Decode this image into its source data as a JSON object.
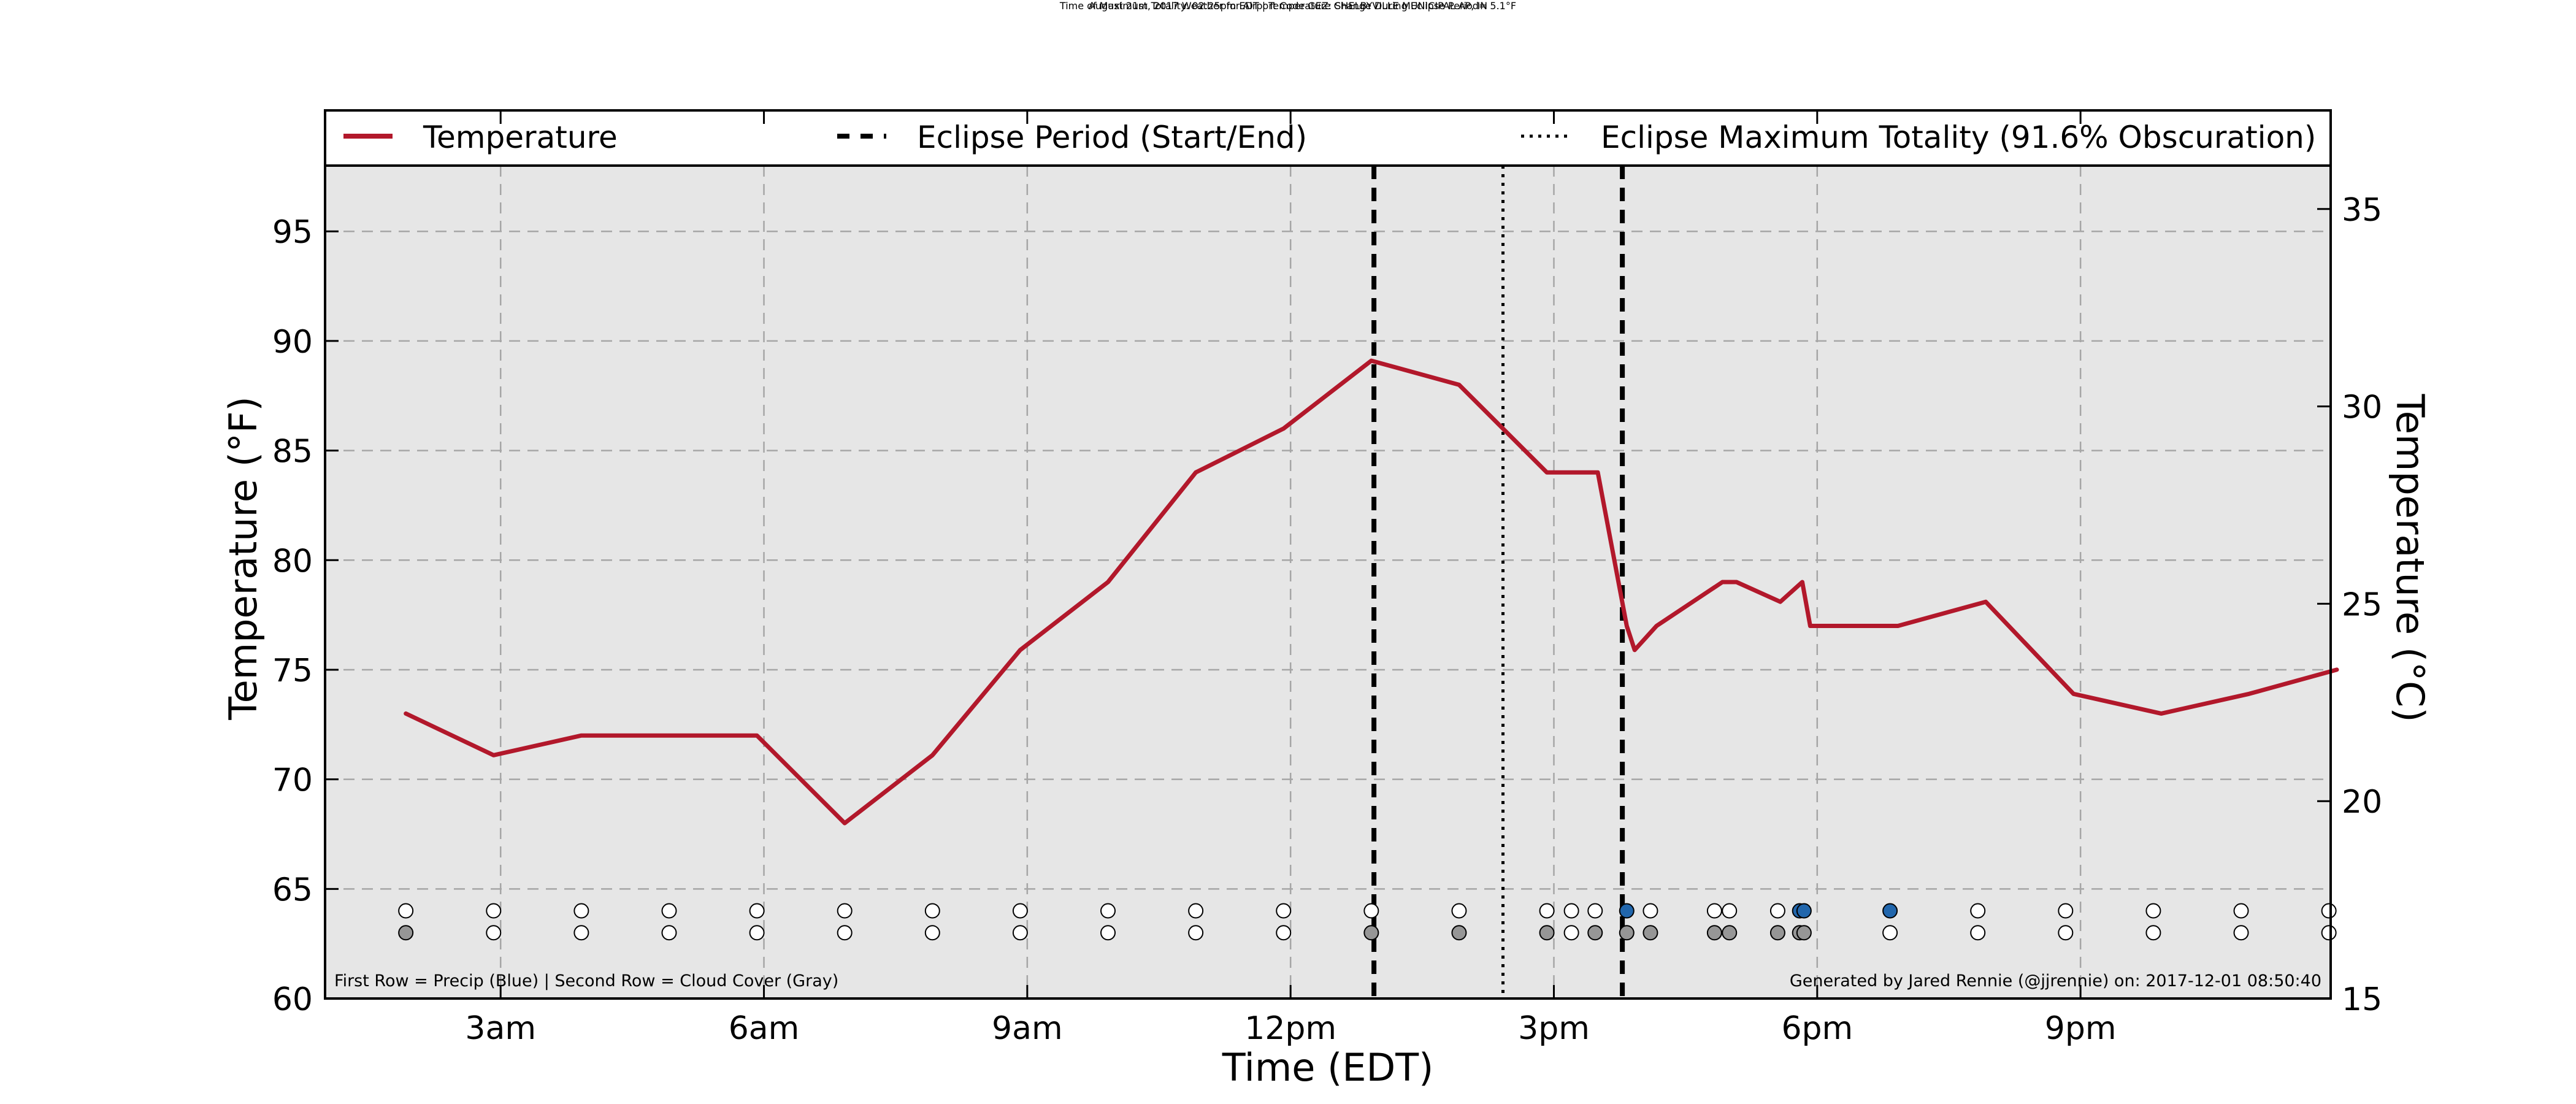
{
  "chart_data": {
    "type": "line",
    "title": "August 21st, 2017 Weather for Airport Code GEZ: SHELBYVILLE MUNICIPAL AP, IN",
    "subtitle": "Time of Maximum Totality: 02:25pm EDT | Temperature Change During Eclipse Period= 5.1°F",
    "xlabel": "Time (EDT)",
    "ylabel": "Temperature (°F)",
    "ylabel_right": "Temperature (°C)",
    "xlim": [
      1.0,
      23.85
    ],
    "ylim": [
      60,
      98
    ],
    "ylim_right": [
      15,
      36.1
    ],
    "x_ticks": [
      {
        "x": 3,
        "label": "3am"
      },
      {
        "x": 6,
        "label": "6am"
      },
      {
        "x": 9,
        "label": "9am"
      },
      {
        "x": 12,
        "label": "12pm"
      },
      {
        "x": 15,
        "label": "3pm"
      },
      {
        "x": 18,
        "label": "6pm"
      },
      {
        "x": 21,
        "label": "9pm"
      }
    ],
    "y_ticks": [
      60,
      65,
      70,
      75,
      80,
      85,
      90,
      95
    ],
    "y_ticks_right": [
      15,
      20,
      25,
      30,
      35
    ],
    "grid": true,
    "legend_position": "top",
    "legend": [
      {
        "label": "Temperature",
        "style": "solid",
        "color": "#b2182b"
      },
      {
        "label": "Eclipse Period (Start/End)",
        "style": "dashed",
        "color": "#000000"
      },
      {
        "label": "Eclipse Maximum Totality (91.6% Obscuration)",
        "style": "dotted",
        "color": "#000000"
      }
    ],
    "series": [
      {
        "name": "Temperature",
        "color": "#b2182b",
        "x": [
          1.92,
          2.92,
          3.92,
          4.92,
          5.92,
          6.92,
          7.92,
          8.92,
          9.92,
          10.92,
          11.92,
          12.92,
          13.92,
          14.92,
          15.5,
          15.83,
          15.92,
          16.17,
          16.92,
          17.08,
          17.58,
          17.83,
          17.92,
          18.92,
          19.92,
          20.92,
          21.92,
          22.92,
          23.92
        ],
        "y": [
          73,
          71.1,
          72,
          72,
          72,
          68,
          71.1,
          75.9,
          79,
          84,
          86,
          89.1,
          88,
          84,
          84,
          77,
          75.9,
          77,
          79,
          79,
          78.1,
          79,
          77,
          77,
          78.1,
          73.9,
          73,
          73.9,
          75
        ]
      }
    ],
    "vlines": [
      {
        "x": 12.95,
        "style": "dashed",
        "label": "Eclipse Period (Start/End)"
      },
      {
        "x": 14.42,
        "style": "dotted",
        "label": "Eclipse Maximum Totality (91.6% Obscuration)"
      },
      {
        "x": 15.78,
        "style": "dashed",
        "label": "Eclipse Period (Start/End)"
      }
    ],
    "observations": [
      {
        "x": 1.92,
        "precip": false,
        "cloud": true
      },
      {
        "x": 2.92,
        "precip": false,
        "cloud": false
      },
      {
        "x": 3.92,
        "precip": false,
        "cloud": false
      },
      {
        "x": 4.92,
        "precip": false,
        "cloud": false
      },
      {
        "x": 5.92,
        "precip": false,
        "cloud": false
      },
      {
        "x": 6.92,
        "precip": false,
        "cloud": false
      },
      {
        "x": 7.92,
        "precip": false,
        "cloud": false
      },
      {
        "x": 8.92,
        "precip": false,
        "cloud": false
      },
      {
        "x": 9.92,
        "precip": false,
        "cloud": false
      },
      {
        "x": 10.92,
        "precip": false,
        "cloud": false
      },
      {
        "x": 11.92,
        "precip": false,
        "cloud": false
      },
      {
        "x": 12.92,
        "precip": false,
        "cloud": true
      },
      {
        "x": 13.92,
        "precip": false,
        "cloud": true
      },
      {
        "x": 14.92,
        "precip": false,
        "cloud": true
      },
      {
        "x": 15.2,
        "precip": false,
        "cloud": false
      },
      {
        "x": 15.47,
        "precip": false,
        "cloud": true
      },
      {
        "x": 15.83,
        "precip": true,
        "cloud": true
      },
      {
        "x": 16.1,
        "precip": false,
        "cloud": true
      },
      {
        "x": 16.83,
        "precip": false,
        "cloud": true
      },
      {
        "x": 17.0,
        "precip": false,
        "cloud": true
      },
      {
        "x": 17.55,
        "precip": false,
        "cloud": true
      },
      {
        "x": 17.8,
        "precip": true,
        "cloud": true
      },
      {
        "x": 17.85,
        "precip": true,
        "cloud": true
      },
      {
        "x": 18.83,
        "precip": true,
        "cloud": false
      },
      {
        "x": 19.83,
        "precip": false,
        "cloud": false
      },
      {
        "x": 20.83,
        "precip": false,
        "cloud": false
      },
      {
        "x": 21.83,
        "precip": false,
        "cloud": false
      },
      {
        "x": 22.83,
        "precip": false,
        "cloud": false
      },
      {
        "x": 23.83,
        "precip": false,
        "cloud": false
      }
    ],
    "observation_rows": {
      "precip_y": 64,
      "cloud_y": 63
    },
    "colors": {
      "background": "#e6e6e6",
      "temperature": "#b2182b",
      "precip": "#2166ac",
      "cloud": "#969696",
      "empty": "#ffffff",
      "grid": "#a6a6a6"
    },
    "footnote_left": "First Row = Precip (Blue) | Second Row = Cloud Cover (Gray)",
    "footnote_right": "Generated by Jared Rennie (@jjrennie) on: 2017-12-01 08:50:40"
  }
}
